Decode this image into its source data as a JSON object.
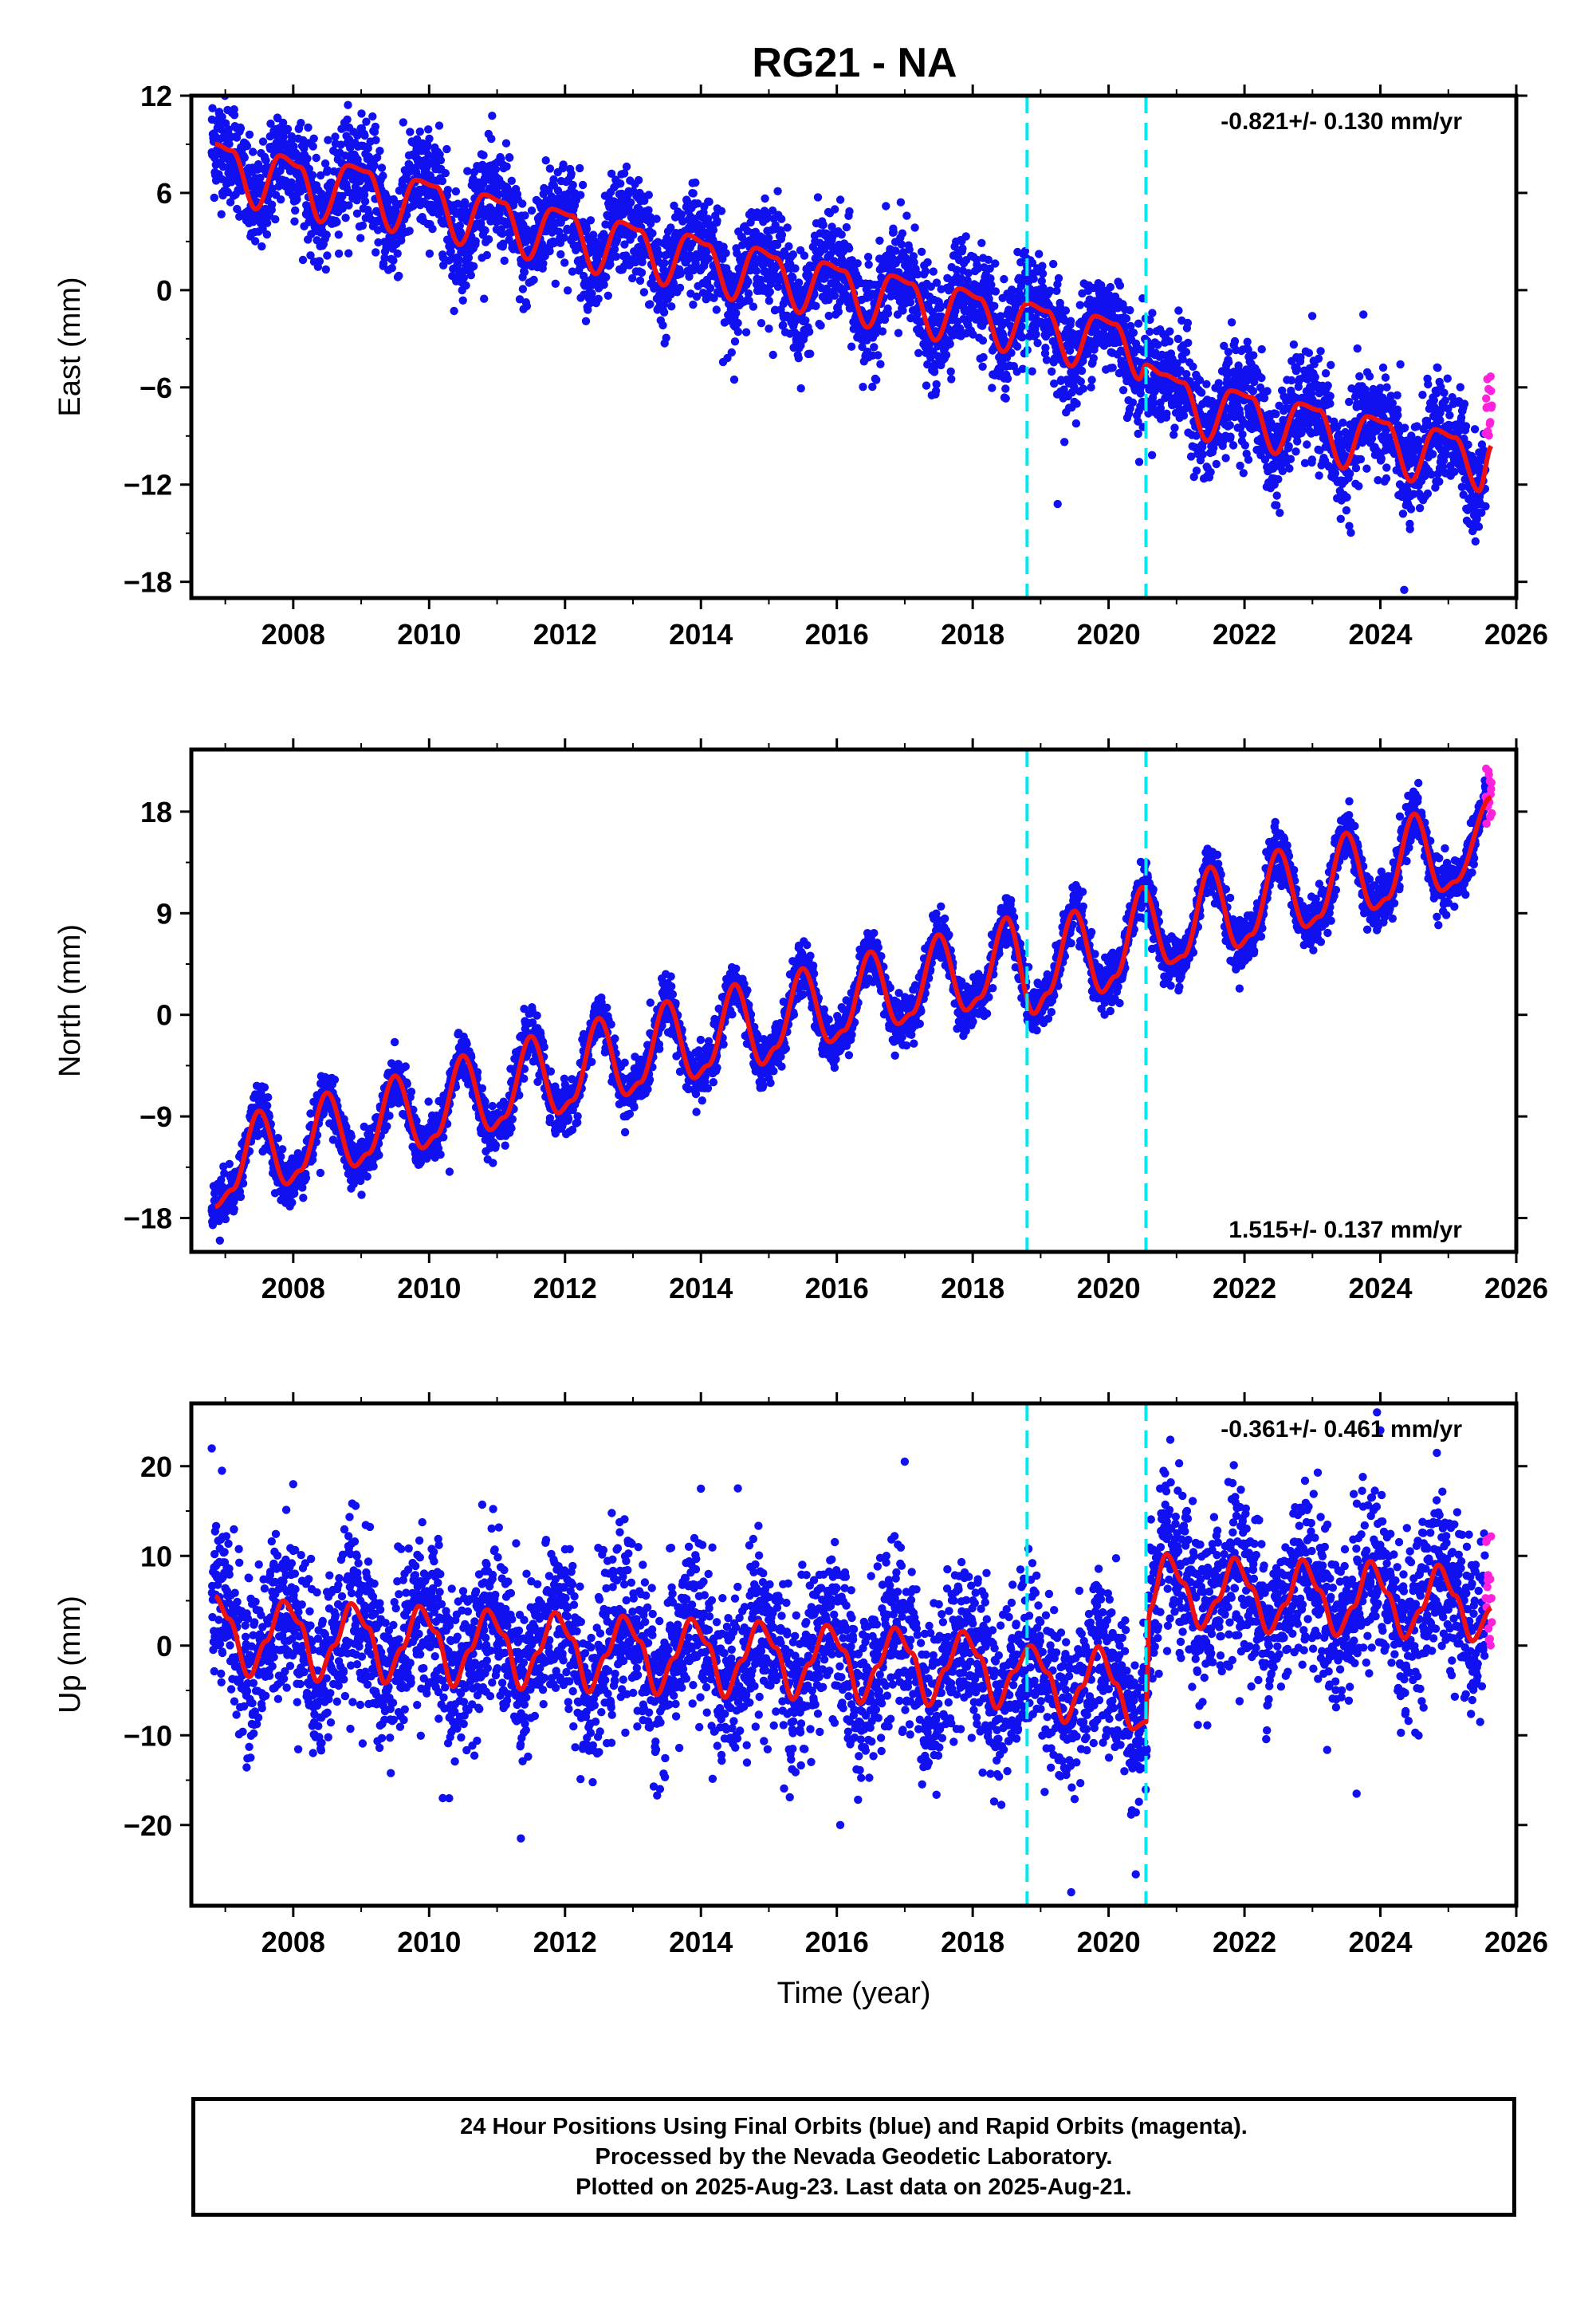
{
  "title": "RG21 - NA",
  "caption": {
    "line1": "24 Hour Positions Using Final Orbits (blue) and Rapid Orbits (magenta).",
    "line2": "Processed by the Nevada Geodetic Laboratory.",
    "line3": "Plotted on 2025-Aug-23. Last data on 2025-Aug-21."
  },
  "colors": {
    "final_orbits": "#1010f0",
    "rapid_orbits": "#ff22dd",
    "model_fit": "#ee1111",
    "equipment_change": "#00e8f0",
    "frame": "#000000"
  },
  "chart_data": [
    {
      "type": "scatter",
      "component": "east",
      "ylabel": "East (mm)",
      "xlabel": "",
      "xlim": [
        2006.5,
        2026.0
      ],
      "ylim": [
        -19.0,
        12.0
      ],
      "yticks": [
        12,
        6,
        0,
        -6,
        -12,
        -18
      ],
      "ytick_labels": [
        "12",
        "6",
        "0",
        "−6",
        "−12",
        "−18"
      ],
      "xticks": [
        2008,
        2010,
        2012,
        2014,
        2016,
        2018,
        2020,
        2022,
        2024,
        2026
      ],
      "xtick_labels": [
        "2008",
        "2010",
        "2012",
        "2014",
        "2016",
        "2018",
        "2020",
        "2022",
        "2024",
        "2026"
      ],
      "rate_label": "-0.821+/- 0.130 mm/yr",
      "rate_position": "top-right",
      "data_start": 2006.8,
      "data_end": 2025.64,
      "rapid_start": 2025.55,
      "equipment_changes": [
        2018.8,
        2020.55
      ],
      "model_x": [
        2006.85,
        2007.1,
        2007.45,
        2007.8,
        2008.1,
        2008.4,
        2008.8,
        2009.1,
        2009.45,
        2009.8,
        2010.1,
        2010.45,
        2010.8,
        2011.1,
        2011.45,
        2011.8,
        2012.1,
        2012.45,
        2012.8,
        2013.1,
        2013.45,
        2013.8,
        2014.1,
        2014.45,
        2014.8,
        2015.1,
        2015.45,
        2015.8,
        2016.1,
        2016.45,
        2016.8,
        2017.1,
        2017.45,
        2017.8,
        2018.1,
        2018.45,
        2018.8,
        2019.1,
        2019.45,
        2019.8,
        2020.1,
        2020.45,
        2020.55,
        2020.8,
        2021.1,
        2021.45,
        2021.8,
        2022.1,
        2022.45,
        2022.8,
        2023.1,
        2023.45,
        2023.8,
        2024.1,
        2024.45,
        2024.8,
        2025.1,
        2025.45,
        2025.64
      ],
      "model_y": [
        9.0,
        8.6,
        5.0,
        8.3,
        7.6,
        4.2,
        7.7,
        7.3,
        3.6,
        6.8,
        6.4,
        2.8,
        5.9,
        5.4,
        1.9,
        5.0,
        4.6,
        1.0,
        4.2,
        3.7,
        0.3,
        3.4,
        2.8,
        -0.6,
        2.6,
        2.0,
        -1.4,
        1.7,
        1.2,
        -2.3,
        0.9,
        0.4,
        -3.1,
        0.1,
        -0.5,
        -3.8,
        -0.8,
        -1.3,
        -4.7,
        -1.6,
        -2.1,
        -5.5,
        -4.6,
        -5.2,
        -5.7,
        -9.3,
        -6.2,
        -6.6,
        -10.1,
        -7.0,
        -7.4,
        -11.0,
        -7.8,
        -8.2,
        -11.8,
        -8.6,
        -9.1,
        -12.4,
        -9.6
      ],
      "model_note": "",
      "noise_mm": 1.6,
      "outliers": [
        [
          2019.25,
          -13.2
        ],
        [
          2020.45,
          -10.6
        ],
        [
          2023.75,
          -1.5
        ],
        [
          2024.35,
          -18.5
        ]
      ],
      "rapid_range": [
        -9.0,
        -5.2
      ]
    },
    {
      "type": "scatter",
      "component": "north",
      "ylabel": "North (mm)",
      "xlabel": "",
      "xlim": [
        2006.5,
        2026.0
      ],
      "ylim": [
        -21.0,
        23.5
      ],
      "yticks": [
        18,
        9,
        0,
        -9,
        -18
      ],
      "ytick_labels": [
        "18",
        "9",
        "0",
        "−9",
        "−18"
      ],
      "xticks": [
        2008,
        2010,
        2012,
        2014,
        2016,
        2018,
        2020,
        2022,
        2024,
        2026
      ],
      "xtick_labels": [
        "2008",
        "2010",
        "2012",
        "2014",
        "2016",
        "2018",
        "2020",
        "2022",
        "2024",
        "2026"
      ],
      "rate_label": "1.515+/- 0.137 mm/yr",
      "rate_position": "bottom-right",
      "data_start": 2006.8,
      "data_end": 2025.64,
      "rapid_start": 2025.55,
      "equipment_changes": [
        2018.8,
        2020.55
      ],
      "model_x": [
        2006.85,
        2007.1,
        2007.5,
        2007.9,
        2008.1,
        2008.5,
        2008.9,
        2009.1,
        2009.5,
        2009.9,
        2010.1,
        2010.5,
        2010.9,
        2011.1,
        2011.5,
        2011.9,
        2012.1,
        2012.5,
        2012.9,
        2013.1,
        2013.5,
        2013.9,
        2014.1,
        2014.5,
        2014.9,
        2015.1,
        2015.5,
        2015.9,
        2016.1,
        2016.5,
        2016.9,
        2017.1,
        2017.5,
        2017.9,
        2018.1,
        2018.5,
        2018.9,
        2019.1,
        2019.5,
        2019.9,
        2020.1,
        2020.5,
        2020.9,
        2021.1,
        2021.5,
        2021.9,
        2022.1,
        2022.5,
        2022.9,
        2023.1,
        2023.5,
        2023.9,
        2024.1,
        2024.5,
        2024.9,
        2025.1,
        2025.64
      ],
      "model_y": [
        -17.0,
        -15.5,
        -8.5,
        -15.0,
        -13.8,
        -6.9,
        -13.4,
        -12.3,
        -5.4,
        -11.8,
        -10.7,
        -3.6,
        -10.2,
        -9.1,
        -1.9,
        -8.7,
        -7.6,
        -0.3,
        -7.1,
        -6.0,
        1.2,
        -5.6,
        -4.5,
        2.7,
        -4.4,
        -2.9,
        4.1,
        -2.4,
        -1.4,
        5.6,
        -0.8,
        0.1,
        7.1,
        0.4,
        1.5,
        8.6,
        0.1,
        1.9,
        9.2,
        2.0,
        3.4,
        11.3,
        4.6,
        5.2,
        13.1,
        6.0,
        7.1,
        14.6,
        7.8,
        8.7,
        16.1,
        9.4,
        10.3,
        17.8,
        11.0,
        11.8,
        19.3
      ],
      "noise_mm": 1.1,
      "outliers": [
        [
          2006.92,
          -20.0
        ],
        [
          2008.4,
          -14.0
        ],
        [
          2010.3,
          -13.9
        ]
      ],
      "rapid_range": [
        16.8,
        22.5
      ]
    },
    {
      "type": "scatter",
      "component": "up",
      "ylabel": "Up (mm)",
      "xlabel": "Time (year)",
      "xlim": [
        2006.5,
        2026.0
      ],
      "ylim": [
        -29.0,
        27.0
      ],
      "yticks": [
        20,
        10,
        0,
        -10,
        -20
      ],
      "ytick_labels": [
        "20",
        "10",
        "0",
        "−10",
        "−20"
      ],
      "xticks": [
        2008,
        2010,
        2012,
        2014,
        2016,
        2018,
        2020,
        2022,
        2024,
        2026
      ],
      "xtick_labels": [
        "2008",
        "2010",
        "2012",
        "2014",
        "2016",
        "2018",
        "2020",
        "2022",
        "2024",
        "2026"
      ],
      "rate_label": "-0.361+/- 0.461 mm/yr",
      "rate_position": "top-right",
      "data_start": 2006.8,
      "data_end": 2025.64,
      "rapid_start": 2025.55,
      "equipment_changes": [
        2018.8,
        2020.55
      ],
      "model_x": [
        2006.85,
        2007.05,
        2007.35,
        2007.6,
        2007.85,
        2008.1,
        2008.35,
        2008.6,
        2008.85,
        2009.1,
        2009.35,
        2009.6,
        2009.85,
        2010.1,
        2010.35,
        2010.6,
        2010.85,
        2011.1,
        2011.35,
        2011.6,
        2011.85,
        2012.1,
        2012.35,
        2012.6,
        2012.85,
        2013.1,
        2013.35,
        2013.6,
        2013.85,
        2014.1,
        2014.35,
        2014.6,
        2014.85,
        2015.1,
        2015.35,
        2015.6,
        2015.85,
        2016.1,
        2016.35,
        2016.6,
        2016.85,
        2017.1,
        2017.35,
        2017.6,
        2017.85,
        2018.1,
        2018.35,
        2018.6,
        2018.85,
        2019.1,
        2019.35,
        2019.6,
        2019.85,
        2020.1,
        2020.35,
        2020.55,
        2020.6,
        2020.85,
        2021.1,
        2021.35,
        2021.6,
        2021.85,
        2022.1,
        2022.35,
        2022.6,
        2022.85,
        2023.1,
        2023.35,
        2023.6,
        2023.85,
        2024.1,
        2024.35,
        2024.6,
        2024.85,
        2025.1,
        2025.35,
        2025.64
      ],
      "model_y": [
        5.5,
        3.0,
        -3.5,
        0.5,
        5.0,
        2.5,
        -4.0,
        0.0,
        4.7,
        2.0,
        -4.2,
        -0.3,
        4.4,
        1.5,
        -4.6,
        -0.5,
        4.0,
        1.2,
        -4.9,
        -0.8,
        3.7,
        0.8,
        -5.2,
        -1.1,
        3.3,
        0.5,
        -5.5,
        -1.4,
        3.0,
        0.2,
        -5.8,
        -1.7,
        2.7,
        -0.2,
        -6.0,
        -2.0,
        2.3,
        -0.5,
        -6.4,
        -2.3,
        2.0,
        -0.8,
        -6.7,
        -2.6,
        1.6,
        -1.2,
        -7.0,
        -2.9,
        0.0,
        -3.0,
        -8.6,
        -4.6,
        -0.1,
        -4.2,
        -9.3,
        -8.5,
        4.0,
        10.2,
        7.0,
        1.9,
        5.0,
        9.8,
        6.5,
        1.4,
        4.6,
        9.6,
        6.2,
        1.1,
        4.3,
        9.4,
        5.9,
        0.8,
        4.0,
        9.0,
        5.6,
        0.5,
        4.2
      ],
      "noise_mm": 4.6,
      "outliers": [
        [
          2006.95,
          19.5
        ],
        [
          2008.0,
          18.0
        ],
        [
          2010.2,
          -17.0
        ],
        [
          2011.35,
          -21.5
        ],
        [
          2014.0,
          17.5
        ],
        [
          2016.05,
          -20.0
        ],
        [
          2017.0,
          20.5
        ],
        [
          2019.45,
          -27.5
        ],
        [
          2020.4,
          -25.5
        ],
        [
          2023.65,
          -16.5
        ],
        [
          2023.95,
          26.0
        ],
        [
          2024.0,
          24.0
        ]
      ],
      "rapid_range": [
        0.0,
        12.5
      ]
    }
  ]
}
